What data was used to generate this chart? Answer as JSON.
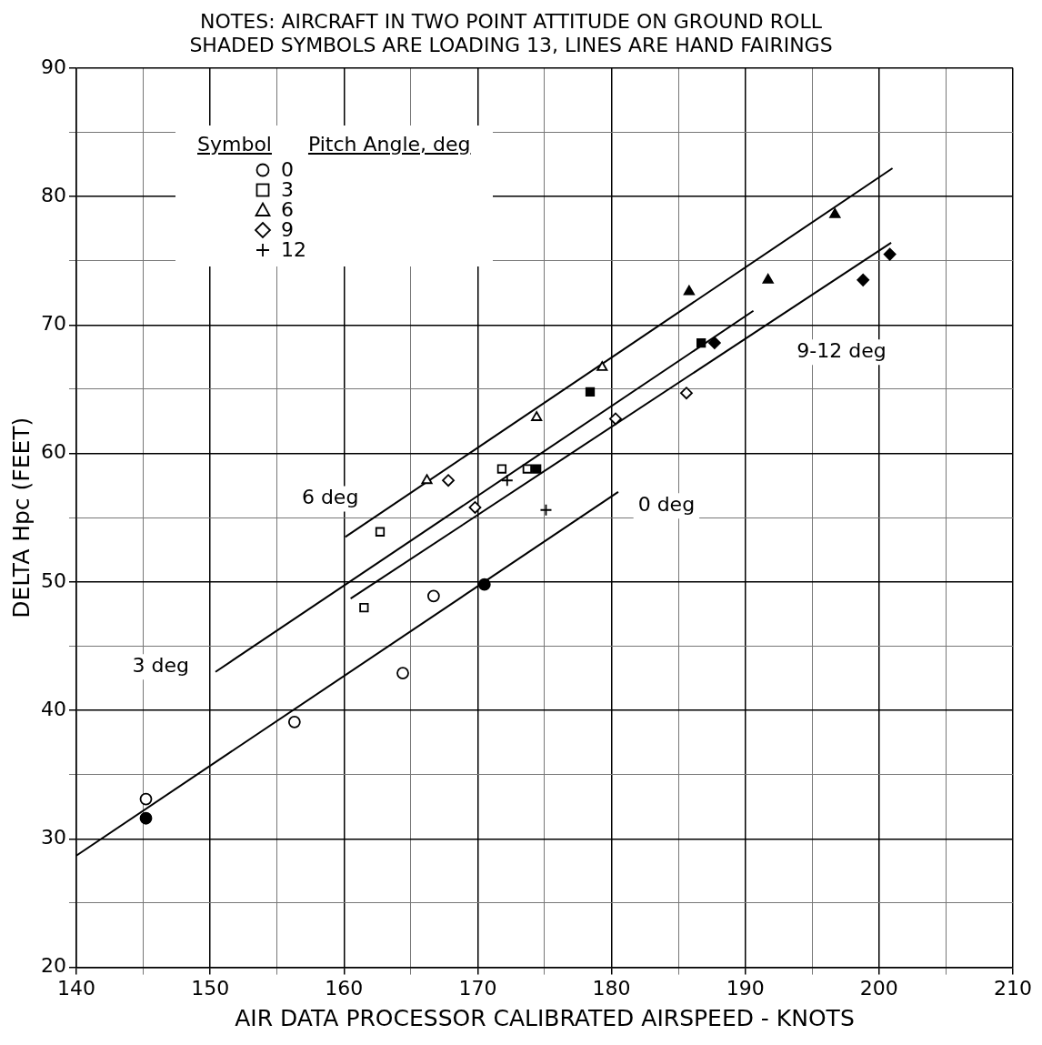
{
  "chart_data": {
    "type": "scatter",
    "title": "NOTES: AIRCRAFT IN TWO POINT ATTITUDE ON GROUND ROLL",
    "subtitle": "SHADED SYMBOLS ARE LOADING 13, LINES ARE HAND FAIRINGS",
    "xlabel": "AIR DATA PROCESSOR CALIBRATED AIRSPEED - KNOTS",
    "ylabel": "DELTA Hpc (FEET)",
    "legend_title": "Pitch Angle, deg",
    "annotations": [
      "Symbol",
      "6 deg",
      "3 deg",
      "0 deg",
      "9-12 deg"
    ],
    "xlim": [
      140,
      210
    ],
    "xticks": [
      140,
      {
        "value": 145,
        "label": null
      },
      150,
      {
        "value": 155,
        "label": null
      },
      160,
      {
        "value": 165,
        "label": null
      },
      170,
      {
        "value": 175,
        "label": null
      },
      180,
      {
        "value": 185,
        "label": null
      },
      190,
      {
        "value": 195,
        "label": null
      },
      200,
      {
        "value": 205,
        "label": null
      },
      210
    ],
    "ylim": [
      20,
      90
    ],
    "yticks": [
      20,
      {
        "value": 25,
        "label": null
      },
      30,
      {
        "value": 35,
        "label": null
      },
      40,
      {
        "value": 45,
        "label": null
      },
      50,
      {
        "value": 55,
        "label": null
      },
      60,
      {
        "value": 65,
        "label": null
      },
      70,
      {
        "value": 75,
        "label": null
      },
      80,
      {
        "value": 85,
        "label": null
      },
      90
    ],
    "grid": true,
    "legend": "top left",
    "series": [
      {
        "name": "0",
        "color": "#000000",
        "marker": "circle",
        "x": [
          145.2,
          156.3,
          164.4,
          166.7,
          145.2,
          170.5
        ],
        "values": [
          33.1,
          39.1,
          42.9,
          48.9,
          31.6,
          49.8
        ],
        "colors": [
          "#ffffff",
          "#ffffff",
          "#ffffff",
          "#ffffff",
          "#000000",
          "#000000"
        ]
      },
      {
        "name": "3",
        "color": "#000000",
        "marker": "square",
        "x": [
          162.7,
          161.5,
          171.8,
          173.7,
          174.4,
          178.4,
          186.7
        ],
        "values": [
          53.9,
          48.0,
          58.8,
          58.8,
          58.8,
          64.8,
          68.6
        ],
        "colors": [
          "#ffffff",
          "#ffffff",
          "#ffffff",
          "#ffffff",
          "#000000",
          "#000000",
          "#000000"
        ]
      },
      {
        "name": "6",
        "color": "#000000",
        "marker": "triangle",
        "x": [
          166.2,
          174.4,
          179.3,
          185.8,
          191.7,
          196.7
        ],
        "values": [
          57.9,
          62.8,
          66.7,
          72.6,
          73.5,
          78.6
        ],
        "colors": [
          "#ffffff",
          "#ffffff",
          "#ffffff",
          "#000000",
          "#000000",
          "#000000"
        ]
      },
      {
        "name": "9",
        "color": "#000000",
        "marker": "diamond",
        "x": [
          167.8,
          169.8,
          180.3,
          185.6,
          187.7,
          198.8,
          200.8
        ],
        "values": [
          57.9,
          55.8,
          62.7,
          64.7,
          68.6,
          73.5,
          75.5
        ],
        "colors": [
          "#ffffff",
          "#ffffff",
          "#ffffff",
          "#ffffff",
          "#000000",
          "#000000",
          "#000000"
        ]
      },
      {
        "name": "12",
        "color": "#000000",
        "marker": "cross",
        "x": [
          172.2,
          175.1
        ],
        "values": [
          57.9,
          55.6
        ]
      },
      {
        "type": "line",
        "color": "#000000",
        "marker": "none",
        "x": [
          140,
          180.5
        ],
        "values": [
          28.7,
          57.0
        ]
      },
      {
        "type": "line",
        "color": "#000000",
        "marker": "none",
        "x": [
          150.4,
          190.6
        ],
        "values": [
          43.0,
          71.1
        ]
      },
      {
        "type": "line",
        "color": "#000000",
        "marker": "none",
        "x": [
          160.1,
          201.0
        ],
        "values": [
          53.5,
          82.2
        ]
      },
      {
        "type": "line",
        "color": "#000000",
        "marker": "none",
        "x": [
          160.5,
          200.9
        ],
        "values": [
          48.7,
          76.4
        ]
      }
    ]
  }
}
